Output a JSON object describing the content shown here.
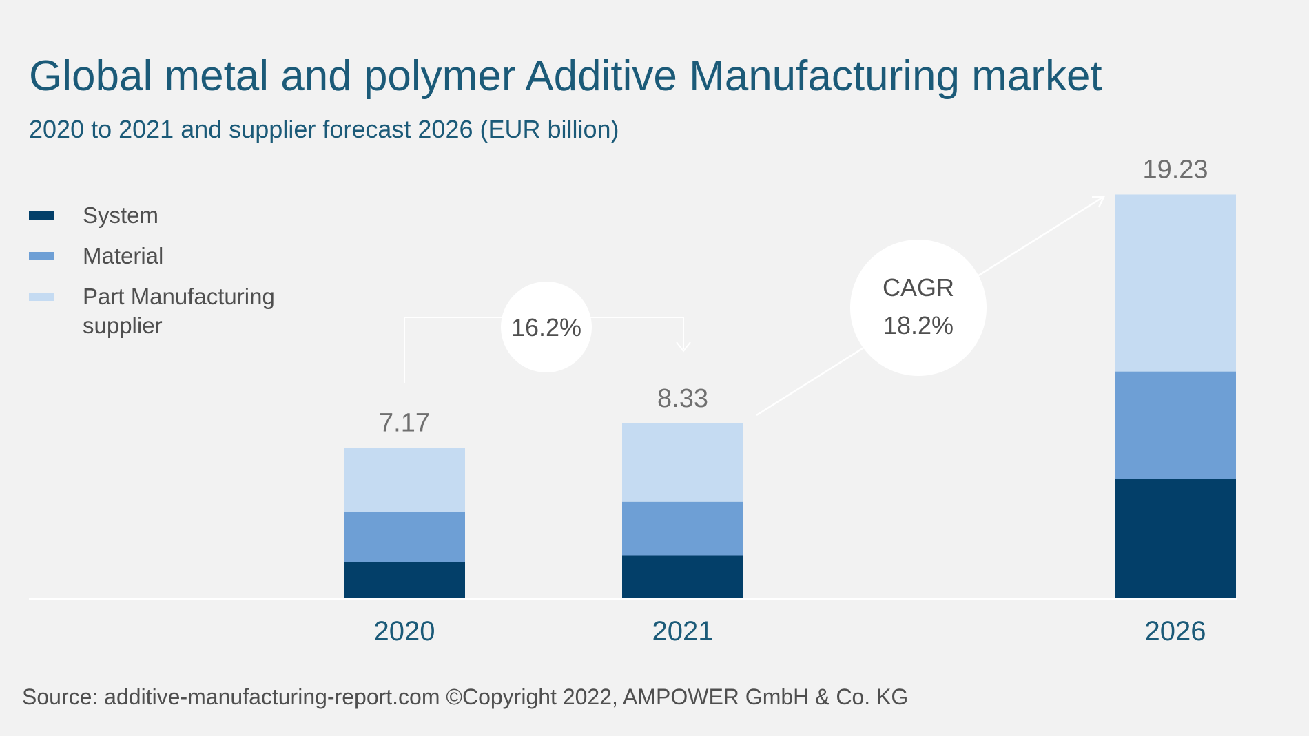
{
  "chart_data": {
    "type": "bar",
    "stacked": true,
    "title": "Global metal and polymer Additive Manufacturing market",
    "subtitle": "2020 to 2021 and supplier forecast 2026 (EUR billion)",
    "categories": [
      "2020",
      "2021",
      "2026"
    ],
    "totals": [
      "7.17",
      "8.33",
      "19.23"
    ],
    "series": [
      {
        "name": "System",
        "color": "#033f69",
        "values": [
          1.73,
          2.05,
          5.7
        ]
      },
      {
        "name": "Material",
        "color": "#6e9fd5",
        "values": [
          2.39,
          2.55,
          5.1
        ]
      },
      {
        "name": "Part Manufacturing supplier",
        "color": "#c5dbf2",
        "values": [
          3.05,
          3.73,
          8.43
        ]
      }
    ],
    "legend": {
      "position": "left",
      "items": [
        {
          "label_lines": [
            "System"
          ]
        },
        {
          "label_lines": [
            "Material"
          ]
        },
        {
          "label_lines": [
            "Part Manufacturing",
            "supplier"
          ]
        }
      ]
    },
    "growth": {
      "y2020_2021": "16.2%",
      "cagr_label": "CAGR",
      "cagr_value": "18.2%"
    },
    "ylim": [
      0,
      20
    ],
    "grid": false
  },
  "source": "Source: additive-manufacturing-report.com ©Copyright 2022, AMPOWER GmbH & Co. KG"
}
